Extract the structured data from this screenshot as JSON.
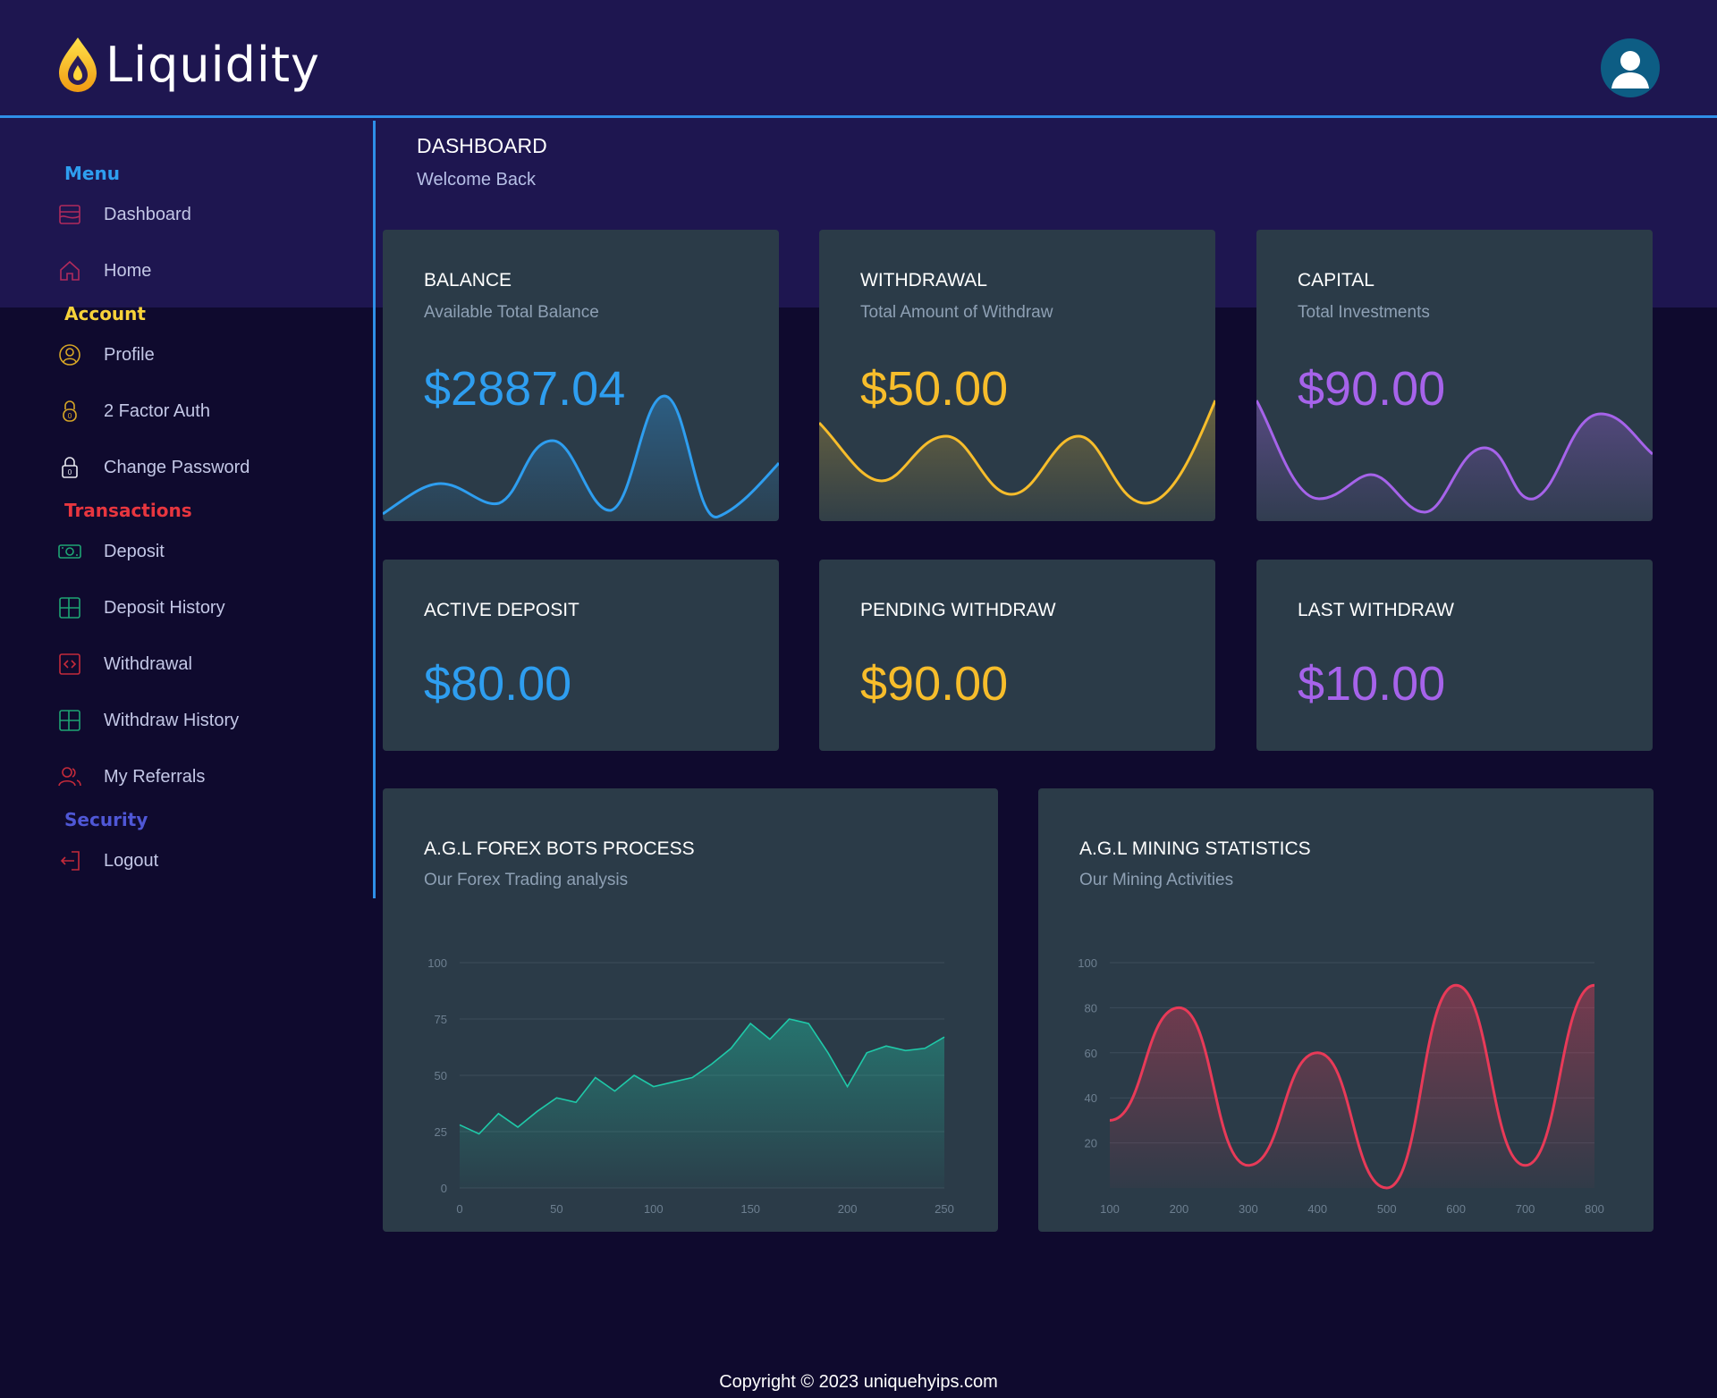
{
  "brand": {
    "name": "Liquidity"
  },
  "header": {
    "avatar_icon": "user-avatar-icon"
  },
  "sidebar": {
    "sections": [
      {
        "heading": "Menu",
        "color": "#2e9ef0"
      },
      {
        "heading": "Account",
        "color": "#f7d23a"
      },
      {
        "heading": "Transactions",
        "color": "#e8363f"
      },
      {
        "heading": "Security",
        "color": "#4f57d6"
      }
    ],
    "items": [
      {
        "label": "Dashboard",
        "icon": "dashboard-icon"
      },
      {
        "label": "Home",
        "icon": "home-icon"
      },
      {
        "label": "Profile",
        "icon": "profile-icon"
      },
      {
        "label": "2 Factor Auth",
        "icon": "lock-icon"
      },
      {
        "label": "Change Password",
        "icon": "padlock-icon"
      },
      {
        "label": "Deposit",
        "icon": "cash-icon"
      },
      {
        "label": "Deposit History",
        "icon": "grid-icon"
      },
      {
        "label": "Withdrawal",
        "icon": "code-icon"
      },
      {
        "label": "Withdraw History",
        "icon": "grid-icon"
      },
      {
        "label": "My Referrals",
        "icon": "users-icon"
      },
      {
        "label": "Logout",
        "icon": "logout-icon"
      }
    ]
  },
  "page": {
    "title": "DASHBOARD",
    "subtitle": "Welcome Back"
  },
  "stats": [
    {
      "title": "BALANCE",
      "subtitle": "Available Total Balance",
      "value": "$2887.04",
      "color": "#2e9ef0"
    },
    {
      "title": "WITHDRAWAL",
      "subtitle": "Total Amount of Withdraw",
      "value": "$50.00",
      "color": "#f7bd2b"
    },
    {
      "title": "CAPITAL",
      "subtitle": "Total Investments",
      "value": "$90.00",
      "color": "#a663ea"
    },
    {
      "title": "ACTIVE DEPOSIT",
      "value": "$80.00",
      "color": "#2e9ef0"
    },
    {
      "title": "PENDING WITHDRAW",
      "value": "$90.00",
      "color": "#f7bd2b"
    },
    {
      "title": "LAST WITHDRAW",
      "value": "$10.00",
      "color": "#a663ea"
    }
  ],
  "charts": [
    {
      "title": "A.G.L FOREX BOTS PROCESS",
      "subtitle": "Our Forex Trading analysis"
    },
    {
      "title": "A.G.L MINING STATISTICS",
      "subtitle": "Our Mining Activities"
    }
  ],
  "chart_data": [
    {
      "type": "area",
      "color": "#1fc9a8",
      "xlim": [
        0,
        250
      ],
      "ylim": [
        0,
        100
      ],
      "x_ticks": [
        0,
        50,
        100,
        150,
        200,
        250
      ],
      "y_ticks": [
        0,
        25,
        50,
        75,
        100
      ],
      "x": [
        0,
        10,
        20,
        30,
        40,
        50,
        60,
        70,
        80,
        90,
        100,
        110,
        120,
        130,
        140,
        150,
        160,
        170,
        180,
        190,
        200,
        210,
        220,
        230,
        240,
        250
      ],
      "y": [
        28,
        24,
        33,
        27,
        34,
        40,
        38,
        49,
        43,
        50,
        45,
        47,
        49,
        55,
        62,
        73,
        66,
        75,
        73,
        60,
        45,
        60,
        63,
        61,
        62,
        67
      ]
    },
    {
      "type": "area",
      "color": "#e83a58",
      "xlim": [
        100,
        800
      ],
      "ylim": [
        0,
        100
      ],
      "x_ticks": [
        100,
        200,
        300,
        400,
        500,
        600,
        700,
        800
      ],
      "y_ticks": [
        20,
        40,
        60,
        80,
        100
      ],
      "x": [
        100,
        200,
        300,
        400,
        500,
        600,
        700,
        800
      ],
      "y": [
        30,
        80,
        10,
        60,
        0,
        90,
        10,
        90
      ]
    }
  ],
  "footer": {
    "copyright": "Copyright © 2023 uniquehyips.com"
  }
}
